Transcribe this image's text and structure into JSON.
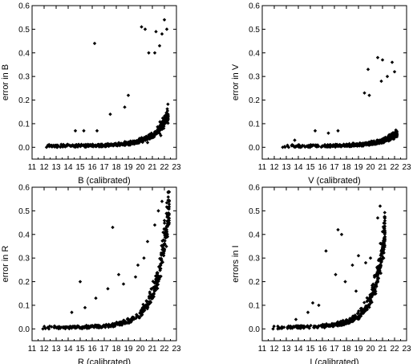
{
  "chart_data": [
    {
      "type": "scatter",
      "xlabel": "B (calibrated)",
      "ylabel": "error in B",
      "xlim": [
        11,
        23
      ],
      "ylim": [
        -0.05,
        0.6
      ],
      "xticks": [
        11,
        12,
        13,
        14,
        15,
        16,
        17,
        18,
        19,
        20,
        21,
        22,
        23
      ],
      "yticks": [
        0.0,
        0.1,
        0.2,
        0.3,
        0.4,
        0.5,
        0.6
      ],
      "grid": false,
      "marker": "diamond",
      "color": "#000000",
      "curve": {
        "x_start": 12.2,
        "x_end": 22.3,
        "a": 0.004,
        "b": 0.1,
        "x0": 14
      },
      "outliers": [
        [
          16.2,
          0.44
        ],
        [
          20.1,
          0.51
        ],
        [
          20.4,
          0.5
        ],
        [
          21.3,
          0.49
        ],
        [
          22.0,
          0.54
        ],
        [
          21.8,
          0.48
        ],
        [
          22.2,
          0.5
        ],
        [
          21.6,
          0.43
        ],
        [
          21.2,
          0.4
        ],
        [
          20.7,
          0.4
        ],
        [
          17.5,
          0.14
        ],
        [
          18.7,
          0.17
        ],
        [
          19.0,
          0.22
        ],
        [
          16.4,
          0.07
        ],
        [
          15.3,
          0.07
        ],
        [
          14.6,
          0.07
        ],
        [
          21.7,
          0.05
        ],
        [
          20.6,
          0.02
        ],
        [
          12.2,
          0.0
        ],
        [
          13.1,
          0.0
        ],
        [
          13.6,
          0.01
        ]
      ]
    },
    {
      "type": "scatter",
      "xlabel": "V (calibrated)",
      "ylabel": "error in V",
      "xlim": [
        11,
        23
      ],
      "ylim": [
        -0.05,
        0.6
      ],
      "xticks": [
        11,
        12,
        13,
        14,
        15,
        16,
        17,
        18,
        19,
        20,
        21,
        22,
        23
      ],
      "yticks": [
        0.0,
        0.1,
        0.2,
        0.3,
        0.4,
        0.5,
        0.6
      ],
      "grid": false,
      "marker": "diamond",
      "color": "#000000",
      "curve": {
        "x_start": 12.7,
        "x_end": 22.2,
        "a": 0.003,
        "b": 0.085,
        "x0": 14
      },
      "outliers": [
        [
          19.8,
          0.33
        ],
        [
          20.6,
          0.38
        ],
        [
          21.0,
          0.37
        ],
        [
          21.8,
          0.36
        ],
        [
          22.0,
          0.32
        ],
        [
          21.4,
          0.3
        ],
        [
          20.9,
          0.28
        ],
        [
          19.5,
          0.23
        ],
        [
          19.9,
          0.22
        ],
        [
          17.3,
          0.07
        ],
        [
          16.5,
          0.06
        ],
        [
          15.4,
          0.07
        ],
        [
          13.7,
          0.03
        ],
        [
          12.7,
          0.0
        ],
        [
          13.2,
          0.0
        ]
      ]
    },
    {
      "type": "scatter",
      "xlabel": "R (calibrated)",
      "ylabel": "error in R",
      "xlim": [
        11,
        23
      ],
      "ylim": [
        -0.05,
        0.6
      ],
      "xticks": [
        11,
        12,
        13,
        14,
        15,
        16,
        17,
        18,
        19,
        20,
        21,
        22,
        23
      ],
      "yticks": [
        0.0,
        0.1,
        0.2,
        0.3,
        0.4,
        0.5,
        0.6
      ],
      "grid": false,
      "marker": "diamond",
      "color": "#000000",
      "curve": {
        "x_start": 11.9,
        "x_end": 22.4,
        "a": 0.004,
        "b": 0.11,
        "x0": 13
      },
      "outliers": [
        [
          17.7,
          0.43
        ],
        [
          21.8,
          0.54
        ],
        [
          22.3,
          0.51
        ],
        [
          21.5,
          0.5
        ],
        [
          21.2,
          0.44
        ],
        [
          20.6,
          0.37
        ],
        [
          20.3,
          0.3
        ],
        [
          19.8,
          0.27
        ],
        [
          19.6,
          0.22
        ],
        [
          15.0,
          0.2
        ],
        [
          17.3,
          0.17
        ],
        [
          16.3,
          0.13
        ],
        [
          18.2,
          0.23
        ],
        [
          18.6,
          0.19
        ],
        [
          14.3,
          0.07
        ],
        [
          15.4,
          0.09
        ],
        [
          11.9,
          0.0
        ],
        [
          12.4,
          0.0
        ]
      ]
    },
    {
      "type": "scatter",
      "xlabel": "I (calibrated)",
      "ylabel": "errors in I",
      "xlim": [
        11,
        23
      ],
      "ylim": [
        -0.05,
        0.6
      ],
      "xticks": [
        11,
        12,
        13,
        14,
        15,
        16,
        17,
        18,
        19,
        20,
        21,
        22,
        23
      ],
      "yticks": [
        0.0,
        0.1,
        0.2,
        0.3,
        0.4,
        0.5,
        0.6
      ],
      "grid": false,
      "marker": "diamond",
      "color": "#000000",
      "curve": {
        "x_start": 11.9,
        "x_end": 21.2,
        "a": 0.005,
        "b": 0.13,
        "x0": 13
      },
      "outliers": [
        [
          20.8,
          0.52
        ],
        [
          20.6,
          0.47
        ],
        [
          17.3,
          0.42
        ],
        [
          17.6,
          0.4
        ],
        [
          16.3,
          0.33
        ],
        [
          19.0,
          0.31
        ],
        [
          18.5,
          0.27
        ],
        [
          19.6,
          0.28
        ],
        [
          20.0,
          0.3
        ],
        [
          17.1,
          0.23
        ],
        [
          17.9,
          0.2
        ],
        [
          18.8,
          0.16
        ],
        [
          15.7,
          0.1
        ],
        [
          14.8,
          0.07
        ],
        [
          15.2,
          0.11
        ],
        [
          13.8,
          0.04
        ],
        [
          11.9,
          0.0
        ],
        [
          12.3,
          0.0
        ]
      ]
    }
  ]
}
